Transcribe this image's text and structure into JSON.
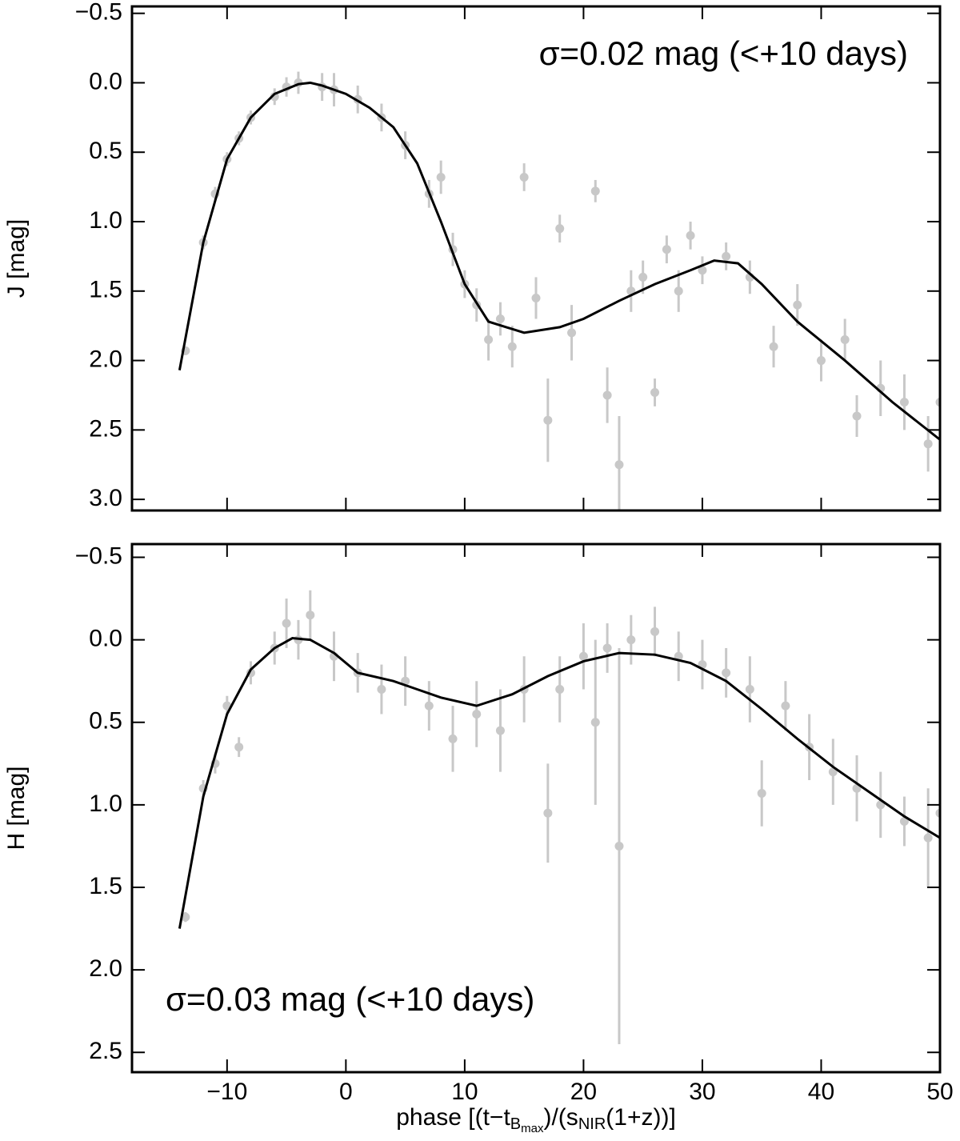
{
  "chart_data": [
    {
      "type": "scatter",
      "ylabel": "J [mag]",
      "annotation": "σ=0.02 mag (<+10 days)",
      "annotation_corner": "top right",
      "xlim": [
        -18,
        50
      ],
      "xticks": [
        -10,
        0,
        10,
        20,
        30,
        40,
        50
      ],
      "ylim": [
        -0.55,
        3.08
      ],
      "y_inverted": true,
      "yticks": [
        {
          "value": -0.5,
          "label": "−0.5"
        },
        {
          "value": 0,
          "label": "0.0"
        },
        {
          "value": 0.5,
          "label": "0.5"
        },
        {
          "value": 1,
          "label": "1.0"
        },
        {
          "value": 1.5,
          "label": "1.5"
        },
        {
          "value": 2,
          "label": "2.0"
        },
        {
          "value": 2.5,
          "label": "2.5"
        },
        {
          "value": 3,
          "label": "3.0"
        }
      ],
      "series": [
        {
          "color": "#c8c8c8",
          "x": [
            -13.5,
            -12,
            -11,
            -10,
            -9,
            -8,
            -6,
            -5,
            -4,
            -2,
            -1,
            1,
            3,
            5,
            7,
            8,
            9,
            10,
            11,
            12,
            13,
            14,
            15,
            16,
            17,
            18,
            19,
            21,
            22,
            23,
            24,
            25,
            26,
            27,
            28,
            29,
            30,
            32,
            34,
            36,
            38,
            40,
            42,
            43,
            45,
            47,
            49,
            50
          ],
          "values": [
            1.93,
            1.15,
            0.8,
            0.55,
            0.4,
            0.25,
            0.1,
            0.03,
            0,
            0.03,
            0.05,
            0.12,
            0.25,
            0.45,
            0.8,
            0.68,
            1.2,
            1.45,
            1.6,
            1.85,
            1.7,
            1.9,
            0.68,
            1.55,
            2.43,
            1.05,
            1.8,
            0.78,
            2.25,
            2.75,
            1.5,
            1.4,
            2.23,
            1.2,
            1.5,
            1.1,
            1.35,
            1.25,
            1.4,
            1.9,
            1.6,
            2,
            1.85,
            2.4,
            2.2,
            2.3,
            2.6,
            2.3
          ],
          "errors": [
            0.03,
            0.05,
            0.05,
            0.05,
            0.05,
            0.05,
            0.06,
            0.07,
            0.08,
            0.1,
            0.12,
            0.1,
            0.1,
            0.1,
            0.1,
            0.12,
            0.12,
            0.1,
            0.12,
            0.15,
            0.12,
            0.15,
            0.1,
            0.15,
            0.3,
            0.1,
            0.2,
            0.08,
            0.2,
            0.35,
            0.15,
            0.12,
            0.1,
            0.1,
            0.15,
            0.1,
            0.1,
            0.1,
            0.12,
            0.15,
            0.15,
            0.15,
            0.15,
            0.15,
            0.2,
            0.2,
            0.2,
            0.3
          ]
        },
        {
          "color": "#000000",
          "line": true,
          "x": [
            -14,
            -12,
            -10,
            -8,
            -6,
            -4,
            -3,
            -2,
            0,
            2,
            4,
            6,
            8,
            10,
            12,
            15,
            18,
            20,
            23,
            26,
            29,
            31,
            33,
            35,
            38,
            42,
            46,
            50
          ],
          "values": [
            2.07,
            1.15,
            0.55,
            0.25,
            0.08,
            0.01,
            0,
            0.02,
            0.08,
            0.18,
            0.32,
            0.58,
            1,
            1.45,
            1.72,
            1.8,
            1.76,
            1.7,
            1.57,
            1.45,
            1.35,
            1.28,
            1.3,
            1.45,
            1.72,
            2,
            2.3,
            2.57
          ]
        }
      ]
    },
    {
      "type": "scatter",
      "ylabel": "H [mag]",
      "annotation": "σ=0.03 mag (<+10 days)",
      "annotation_corner": "bottom left",
      "xlabel": [
        "phase [(t−t",
        "B",
        "max",
        ")/(s",
        "NIR",
        "(1+z))]"
      ],
      "xlim": [
        -18,
        50
      ],
      "xticks": [
        {
          "value": -10,
          "label": "−10"
        },
        0,
        10,
        20,
        30,
        40,
        50
      ],
      "ylim": [
        -0.58,
        2.62
      ],
      "y_inverted": true,
      "yticks": [
        {
          "value": -0.5,
          "label": "−0.5"
        },
        {
          "value": 0,
          "label": "0.0"
        },
        {
          "value": 0.5,
          "label": "0.5"
        },
        {
          "value": 1,
          "label": "1.0"
        },
        {
          "value": 1.5,
          "label": "1.5"
        },
        {
          "value": 2,
          "label": "2.0"
        },
        {
          "value": 2.5,
          "label": "2.5"
        }
      ],
      "series": [
        {
          "color": "#c8c8c8",
          "x": [
            -13.5,
            -12,
            -11,
            -10,
            -9,
            -8,
            -6,
            -5,
            -4,
            -3,
            -1,
            1,
            3,
            5,
            7,
            9,
            11,
            13,
            15,
            17,
            18,
            20,
            21,
            22,
            23,
            24,
            26,
            28,
            30,
            32,
            34,
            35,
            37,
            39,
            41,
            43,
            45,
            47,
            49,
            50
          ],
          "values": [
            1.68,
            0.9,
            0.75,
            0.4,
            0.65,
            0.2,
            0.05,
            -0.1,
            0,
            -0.15,
            0.1,
            0.2,
            0.3,
            0.25,
            0.4,
            0.6,
            0.45,
            0.55,
            0.3,
            1.05,
            0.3,
            0.1,
            0.5,
            0.05,
            1.25,
            0,
            -0.05,
            0.1,
            0.15,
            0.2,
            0.3,
            0.93,
            0.4,
            0.65,
            0.8,
            0.9,
            1,
            1.1,
            1.2,
            1.05
          ],
          "errors": [
            0.03,
            0.05,
            0.06,
            0.06,
            0.06,
            0.07,
            0.1,
            0.15,
            0.12,
            0.15,
            0.15,
            0.12,
            0.15,
            0.15,
            0.15,
            0.2,
            0.2,
            0.25,
            0.2,
            0.3,
            0.2,
            0.2,
            0.5,
            0.15,
            1.2,
            0.15,
            0.15,
            0.15,
            0.15,
            0.15,
            0.2,
            0.2,
            0.15,
            0.2,
            0.2,
            0.2,
            0.2,
            0.15,
            0.3,
            0.2
          ]
        },
        {
          "color": "#000000",
          "line": true,
          "x": [
            -14,
            -12,
            -10,
            -8,
            -6,
            -4.5,
            -3,
            -1,
            1,
            4,
            6,
            8,
            11,
            14,
            17,
            20,
            23,
            26,
            29,
            32,
            35,
            38,
            41,
            44,
            47,
            50
          ],
          "values": [
            1.75,
            0.95,
            0.45,
            0.18,
            0.05,
            -0.01,
            0,
            0.08,
            0.2,
            0.25,
            0.3,
            0.35,
            0.4,
            0.33,
            0.22,
            0.13,
            0.08,
            0.09,
            0.14,
            0.25,
            0.42,
            0.6,
            0.77,
            0.92,
            1.07,
            1.2
          ]
        }
      ]
    }
  ]
}
